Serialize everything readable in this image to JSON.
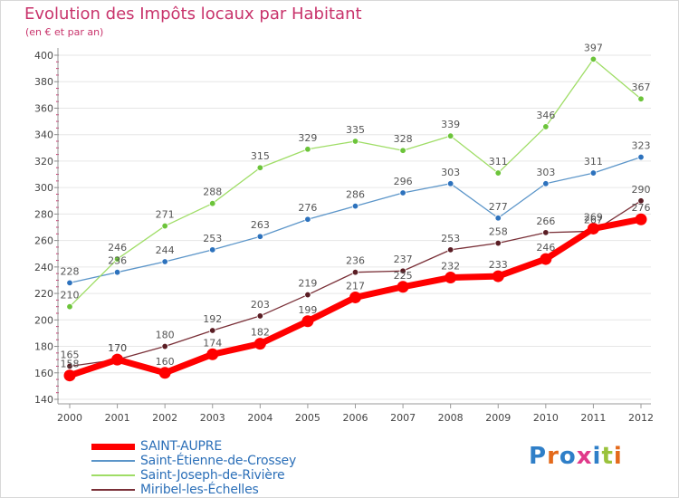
{
  "title": "Evolution des Impôts locaux par Habitant",
  "subtitle": "(en € et par an)",
  "brand": {
    "text": "Proxiti",
    "letter_colors": [
      "#2f7fc8",
      "#e46a1b",
      "#2f7fc8",
      "#e03a8a",
      "#2f7fc8",
      "#9ac23c",
      "#e46a1b"
    ]
  },
  "chart_data": {
    "type": "line",
    "title": "Evolution des Impôts locaux par Habitant",
    "subtitle": "(en € et par an)",
    "xlabel": "",
    "ylabel": "",
    "x": [
      "2000",
      "2001",
      "2002",
      "2003",
      "2004",
      "2005",
      "2006",
      "2007",
      "2008",
      "2009",
      "2010",
      "2011",
      "2012"
    ],
    "ylim": [
      140,
      400
    ],
    "yticks": [
      "140",
      "160",
      "180",
      "200",
      "220",
      "240",
      "260",
      "280",
      "300",
      "320",
      "340",
      "360",
      "380",
      "400"
    ],
    "grid": "horizontal",
    "legend_position": "bottom-left",
    "series": [
      {
        "name": "SAINT-AUPRE",
        "color": "#ff0000",
        "marker_color": "#ff0000",
        "emphasis": true,
        "values": [
          158,
          170,
          160,
          174,
          182,
          199,
          217,
          225,
          232,
          233,
          246,
          269,
          276
        ]
      },
      {
        "name": "Saint-Étienne-de-Crossey",
        "color": "#5b95c9",
        "marker_color": "#2d72bd",
        "values": [
          228,
          236,
          244,
          253,
          263,
          276,
          286,
          296,
          303,
          277,
          303,
          311,
          323
        ]
      },
      {
        "name": "Saint-Joseph-de-Rivière",
        "color": "#9fdd66",
        "marker_color": "#6cc43a",
        "values": [
          210,
          246,
          271,
          288,
          315,
          329,
          335,
          328,
          339,
          311,
          346,
          397,
          367
        ]
      },
      {
        "name": "Miribel-les-Échelles",
        "color": "#7a3038",
        "marker_color": "#5a1d24",
        "values": [
          165,
          170,
          180,
          192,
          203,
          219,
          236,
          237,
          253,
          258,
          266,
          267,
          290
        ]
      }
    ]
  }
}
